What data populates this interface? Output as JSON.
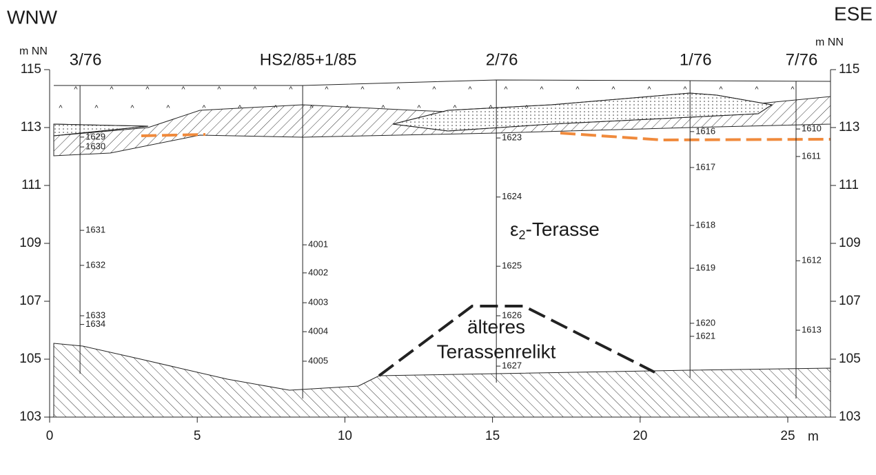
{
  "chart_data": {
    "type": "section",
    "left_label": "WNW",
    "right_label": "ESE",
    "y_label": "m NN",
    "y2_label": "m NN",
    "x_label": "m",
    "xlim": [
      0,
      26.45
    ],
    "ylim": [
      103,
      115
    ],
    "y2lim": [
      103,
      115
    ],
    "xticks": [
      0,
      5,
      10,
      15,
      20,
      25
    ],
    "yticks": [
      103,
      105,
      107,
      109,
      111,
      113,
      115
    ],
    "y2ticks": [
      103,
      105,
      107,
      109,
      111,
      113,
      115
    ],
    "boreholes": [
      {
        "name": "3/76",
        "x": 1.03,
        "top": 114.45,
        "bottom": 104.5,
        "samples": [
          {
            "label": "1629",
            "elevation": 112.67
          },
          {
            "label": "1630",
            "elevation": 112.33
          },
          {
            "label": "1631",
            "elevation": 109.45
          },
          {
            "label": "1632",
            "elevation": 108.24
          },
          {
            "label": "1633",
            "elevation": 106.5
          },
          {
            "label": "1634",
            "elevation": 106.2
          }
        ]
      },
      {
        "name": "HS2/85+1/85",
        "x": 8.57,
        "top": 114.45,
        "bottom": 103.64,
        "samples": [
          {
            "label": "4001",
            "elevation": 108.95
          },
          {
            "label": "4002",
            "elevation": 107.98
          },
          {
            "label": "4003",
            "elevation": 106.95
          },
          {
            "label": "4004",
            "elevation": 105.95
          },
          {
            "label": "4005",
            "elevation": 104.93
          }
        ]
      },
      {
        "name": "2/76",
        "x": 15.13,
        "top": 114.64,
        "bottom": 104.19,
        "samples": [
          {
            "label": "1623",
            "elevation": 112.64
          },
          {
            "label": "1624",
            "elevation": 110.6
          },
          {
            "label": "1625",
            "elevation": 108.21
          },
          {
            "label": "1626",
            "elevation": 106.5
          },
          {
            "label": "1627",
            "elevation": 104.76
          }
        ]
      },
      {
        "name": "1/76",
        "x": 21.69,
        "top": 114.62,
        "bottom": 104.36,
        "samples": [
          {
            "label": "1616",
            "elevation": 112.86
          },
          {
            "label": "1617",
            "elevation": 111.62
          },
          {
            "label": "1618",
            "elevation": 109.62
          },
          {
            "label": "1619",
            "elevation": 108.14
          },
          {
            "label": "1620",
            "elevation": 106.24
          },
          {
            "label": "1621",
            "elevation": 105.79
          }
        ]
      },
      {
        "name": "7/76",
        "x": 25.28,
        "top": 114.6,
        "bottom": 103.64,
        "samples": [
          {
            "label": "1610",
            "elevation": 112.95
          },
          {
            "label": "1611",
            "elevation": 112.0
          },
          {
            "label": "1612",
            "elevation": 108.4
          },
          {
            "label": "1613",
            "elevation": 106.0
          }
        ]
      }
    ],
    "terrace_label": {
      "symbol": "ε",
      "subscript": "2",
      "text": "-Terasse"
    },
    "relict_label": [
      "älteres",
      "Terassenrelikt"
    ]
  }
}
